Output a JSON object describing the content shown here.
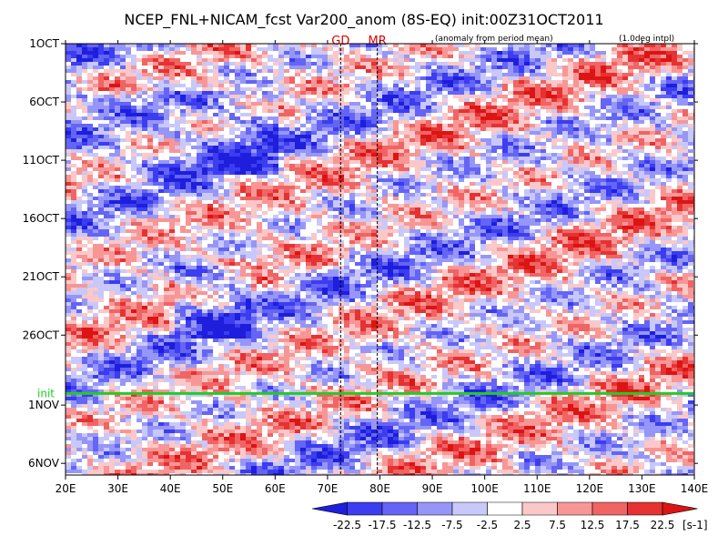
{
  "chart_data": {
    "type": "heatmap",
    "title": "NCEP_FNL+NICAM_fcst Var200_anom (8S-EQ) init:00Z31OCT2011",
    "subtitle_left": "(anomaly from period mean)",
    "subtitle_right": "(1.0deg intpl)",
    "x_ticks": [
      {
        "label": "20E",
        "value": 20
      },
      {
        "label": "30E",
        "value": 30
      },
      {
        "label": "40E",
        "value": 40
      },
      {
        "label": "50E",
        "value": 50
      },
      {
        "label": "60E",
        "value": 60
      },
      {
        "label": "70E",
        "value": 70
      },
      {
        "label": "80E",
        "value": 80
      },
      {
        "label": "90E",
        "value": 90
      },
      {
        "label": "100E",
        "value": 100
      },
      {
        "label": "110E",
        "value": 110
      },
      {
        "label": "120E",
        "value": 120
      },
      {
        "label": "130E",
        "value": 130
      },
      {
        "label": "140E",
        "value": 140
      }
    ],
    "xlim": [
      20,
      140
    ],
    "y_ticks": [
      {
        "label": "1OCT",
        "day": 1
      },
      {
        "label": "6OCT",
        "day": 6
      },
      {
        "label": "11OCT",
        "day": 11
      },
      {
        "label": "16OCT",
        "day": 16
      },
      {
        "label": "21OCT",
        "day": 21
      },
      {
        "label": "26OCT",
        "day": 26
      },
      {
        "label": "1NOV",
        "day": 32
      },
      {
        "label": "6NOV",
        "day": 37
      }
    ],
    "ylim": [
      1,
      38
    ],
    "y_reversed": true,
    "init_line": {
      "label": "init",
      "day": 31,
      "color": "#22cc22"
    },
    "markers": [
      {
        "label": "GD",
        "lon": 72.5
      },
      {
        "label": "MR",
        "lon": 79.5
      }
    ],
    "colorbar": {
      "unit": "[s-1]",
      "levels": [
        "-22.5",
        "-17.5",
        "-12.5",
        "-7.5",
        "-2.5",
        "2.5",
        "7.5",
        "12.5",
        "17.5",
        "22.5"
      ],
      "colors": [
        "#1e1edc",
        "#3c3cf0",
        "#6464f5",
        "#9696f8",
        "#c8c8fa",
        "#ffffff",
        "#fac8c8",
        "#f89696",
        "#f06464",
        "#e63232",
        "#dc1414"
      ]
    }
  }
}
